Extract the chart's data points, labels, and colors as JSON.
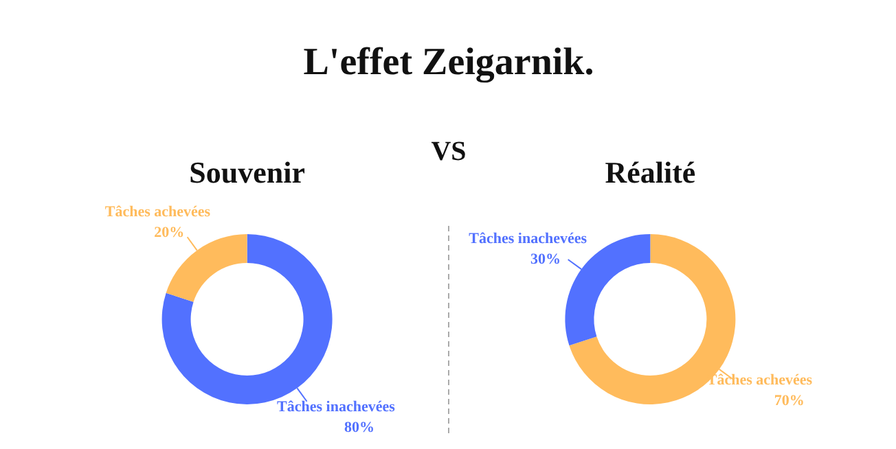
{
  "chart_data": [
    {
      "type": "other",
      "title": "L'effet Zeigarnik.",
      "annotations": [
        "VS"
      ]
    },
    {
      "type": "donut",
      "title": "Souvenir",
      "categories": [
        "Tâches inachevées",
        "Tâches achevées"
      ],
      "values": [
        80,
        20
      ],
      "colors": [
        "#5271ff",
        "#ffbb5c"
      ],
      "value_labels": [
        "80%",
        "20%"
      ]
    },
    {
      "type": "donut",
      "title": "Réalité",
      "categories": [
        "Tâches achevées",
        "Tâches inachevées"
      ],
      "values": [
        70,
        30
      ],
      "colors": [
        "#ffbb5c",
        "#5271ff"
      ],
      "value_labels": [
        "70%",
        "30%"
      ]
    }
  ]
}
